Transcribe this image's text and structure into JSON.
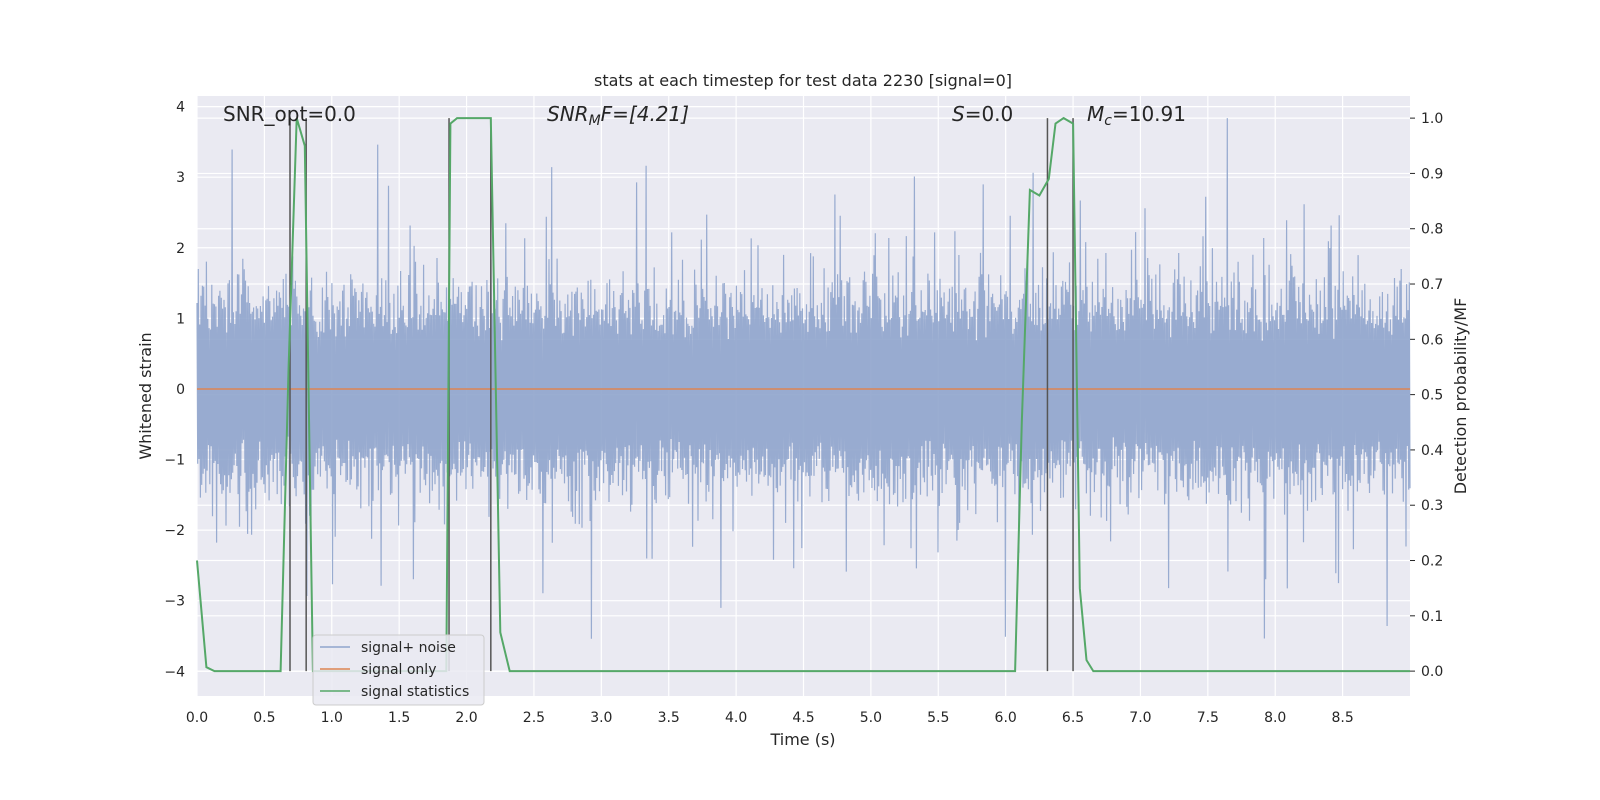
{
  "chart_data": {
    "type": "line",
    "title": "stats at each timestep for test data 2230 [signal=0]",
    "xlabel": "Time (s)",
    "ylabel": "Whitened strain",
    "ylabel_right": "Detection probability/MF",
    "xlim": [
      0,
      9.0
    ],
    "ylim": [
      -4.35,
      4.15
    ],
    "ylim_right": [
      -0.045,
      1.04
    ],
    "grid": true,
    "legend_position": "lower-left",
    "x_ticks": [
      "0.0",
      "0.5",
      "1.0",
      "1.5",
      "2.0",
      "2.5",
      "3.0",
      "3.5",
      "4.0",
      "4.5",
      "5.0",
      "5.5",
      "6.0",
      "6.5",
      "7.0",
      "7.5",
      "8.0",
      "8.5"
    ],
    "y_ticks": [
      "4",
      "3",
      "2",
      "1",
      "0",
      "−1",
      "−2",
      "−3",
      "−4"
    ],
    "y_ticks_right": [
      "1.0",
      "0.9",
      "0.8",
      "0.7",
      "0.6",
      "0.5",
      "0.4",
      "0.3",
      "0.2",
      "0.1",
      "0.0"
    ],
    "annotations": {
      "snr_opt": "SNR_opt=0.0",
      "snr_mf_main": "SNR",
      "snr_mf_sub": "M",
      "snr_mf_tail": "F=[4.21]",
      "s_var": "S",
      "s_val": "=0.0",
      "mc_var": "M",
      "mc_sub": "c",
      "mc_val": "=10.91"
    },
    "series": [
      {
        "name": "signal+ noise",
        "color": "#8fa4cc",
        "description_kind": "noise",
        "sample_count": 1800,
        "typical_abs": 1.4,
        "max_abs": 4.0
      },
      {
        "name": "signal only",
        "color": "#dd8452",
        "x": [
          0,
          9.0
        ],
        "y": [
          0,
          0
        ]
      },
      {
        "name": "signal statistics",
        "color": "#55a868",
        "axis": "right",
        "x": [
          0.0,
          0.07,
          0.13,
          0.62,
          0.68,
          0.74,
          0.8,
          0.86,
          0.9,
          1.0,
          1.85,
          1.88,
          1.93,
          2.0,
          2.08,
          2.18,
          2.25,
          2.32,
          2.5,
          6.0,
          6.07,
          6.12,
          6.18,
          6.25,
          6.32,
          6.37,
          6.43,
          6.5,
          6.55,
          6.6,
          6.65,
          9.0
        ],
        "y": [
          0.2,
          0.007,
          0.0,
          0.0,
          0.55,
          1.0,
          0.95,
          0.0,
          0.0,
          0.0,
          0.0,
          0.99,
          1.0,
          1.0,
          1.0,
          1.0,
          0.07,
          0.0,
          0.0,
          0.0,
          0.0,
          0.45,
          0.87,
          0.86,
          0.89,
          0.99,
          1.0,
          0.99,
          0.15,
          0.02,
          0.0,
          0.0
        ]
      }
    ],
    "vertical_markers": [
      0.69,
      0.81,
      1.87,
      2.18,
      6.31,
      6.5
    ]
  }
}
